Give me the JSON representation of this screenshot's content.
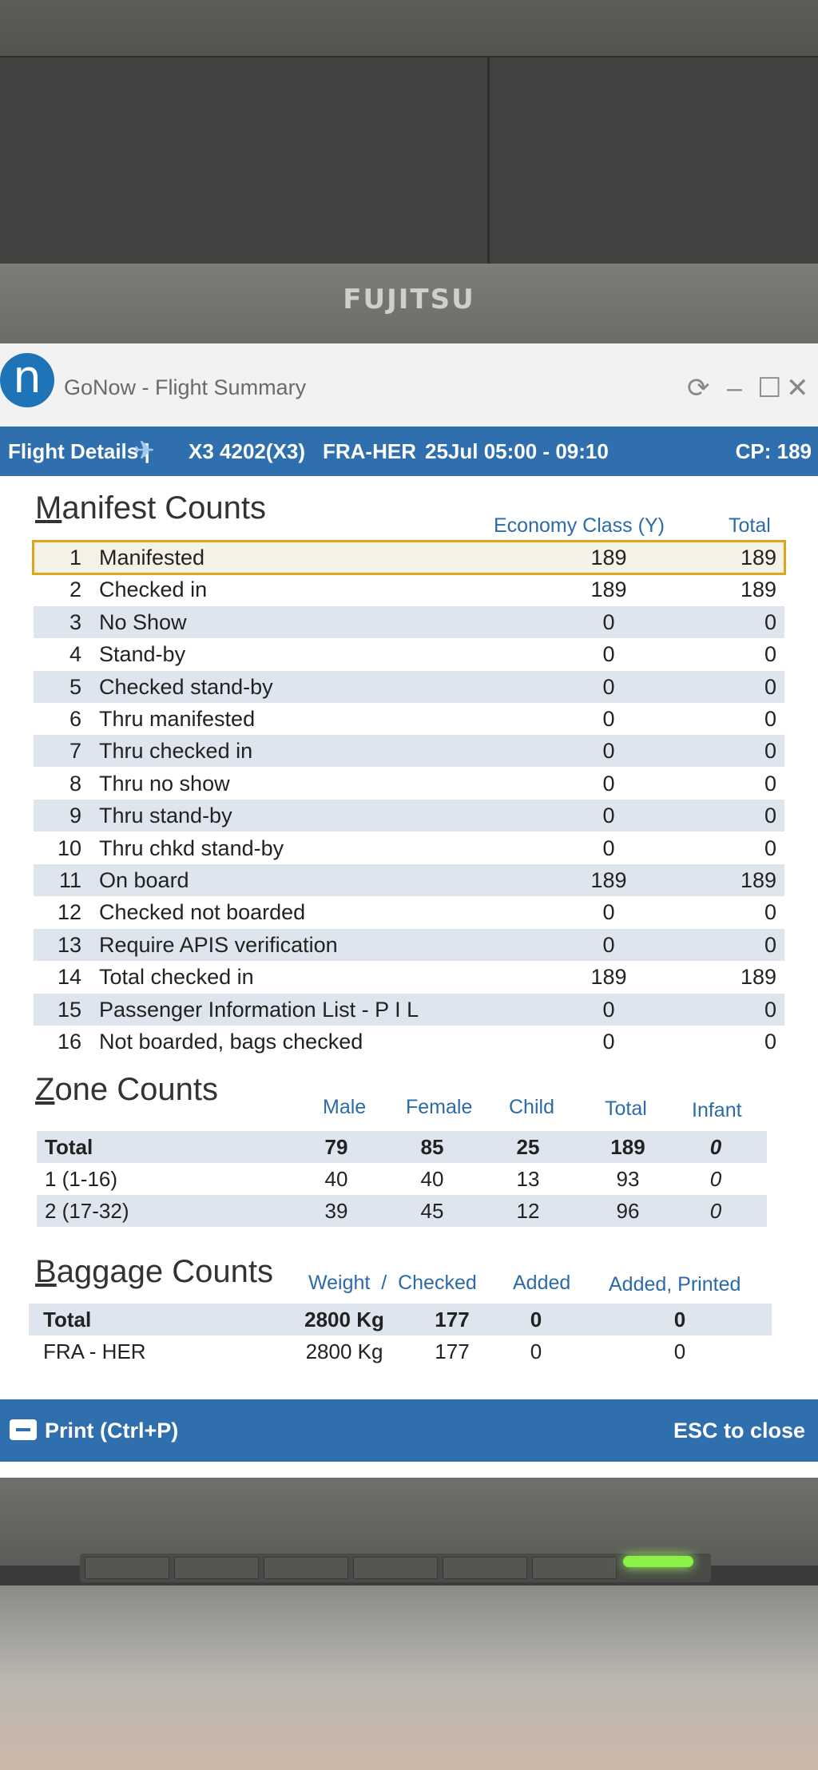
{
  "monitor": {
    "brand": "FUJITSU"
  },
  "window": {
    "logo": "n",
    "title": "GoNow - Flight Summary",
    "controls": {
      "refresh": "⟳",
      "minimize": "–",
      "maximize": "☐",
      "close": "✕"
    }
  },
  "flight_bar": {
    "label": "Flight Details |",
    "icon": "airplane-icon",
    "flight": "X3 4202(X3)",
    "route": "FRA-HER",
    "schedule": "25Jul 05:00 - 09:10",
    "cp": "CP: 189"
  },
  "manifest": {
    "title_first": "M",
    "title_rest": "anifest Counts",
    "col_economy": "Economy Class (Y)",
    "col_total": "Total",
    "selected_row": 1,
    "rows": [
      {
        "num": "1",
        "label": "Manifested",
        "economy": "189",
        "total": "189"
      },
      {
        "num": "2",
        "label": "Checked in",
        "economy": "189",
        "total": "189"
      },
      {
        "num": "3",
        "label": "No Show",
        "economy": "0",
        "total": "0"
      },
      {
        "num": "4",
        "label": "Stand-by",
        "economy": "0",
        "total": "0"
      },
      {
        "num": "5",
        "label": "Checked stand-by",
        "economy": "0",
        "total": "0"
      },
      {
        "num": "6",
        "label": "Thru manifested",
        "economy": "0",
        "total": "0"
      },
      {
        "num": "7",
        "label": "Thru checked in",
        "economy": "0",
        "total": "0"
      },
      {
        "num": "8",
        "label": "Thru no show",
        "economy": "0",
        "total": "0"
      },
      {
        "num": "9",
        "label": "Thru stand-by",
        "economy": "0",
        "total": "0"
      },
      {
        "num": "10",
        "label": "Thru chkd stand-by",
        "economy": "0",
        "total": "0"
      },
      {
        "num": "11",
        "label": "On board",
        "economy": "189",
        "total": "189"
      },
      {
        "num": "12",
        "label": "Checked not boarded",
        "economy": "0",
        "total": "0"
      },
      {
        "num": "13",
        "label": "Require APIS verification",
        "economy": "0",
        "total": "0"
      },
      {
        "num": "14",
        "label": "Total checked in",
        "economy": "189",
        "total": "189"
      },
      {
        "num": "15",
        "label": "Passenger Information List - P I L",
        "economy": "0",
        "total": "0"
      },
      {
        "num": "16",
        "label": "Not boarded, bags checked",
        "economy": "0",
        "total": "0"
      }
    ]
  },
  "zone": {
    "title_first": "Z",
    "title_rest": "one Counts",
    "cols": {
      "male": "Male",
      "female": "Female",
      "child": "Child",
      "total": "Total",
      "infant": "Infant"
    },
    "rows": [
      {
        "label": "Total",
        "male": "79",
        "female": "85",
        "child": "25",
        "total": "189",
        "infant": "0"
      },
      {
        "label": "1 (1-16)",
        "male": "40",
        "female": "40",
        "child": "13",
        "total": "93",
        "infant": "0"
      },
      {
        "label": "2 (17-32)",
        "male": "39",
        "female": "45",
        "child": "12",
        "total": "96",
        "infant": "0"
      }
    ]
  },
  "baggage": {
    "title_first": "B",
    "title_rest": "aggage Counts",
    "cols": {
      "weight_checked": "Weight  /  Checked",
      "added": "Added",
      "added_printed": "Added, Printed"
    },
    "rows": [
      {
        "label": "Total",
        "weight": "2800 Kg",
        "checked": "177",
        "added": "0",
        "added_printed": "0"
      },
      {
        "label": "FRA - HER",
        "weight": "2800 Kg",
        "checked": "177",
        "added": "0",
        "added_printed": "0"
      }
    ]
  },
  "footer": {
    "print_label": "Print (Ctrl+P)",
    "print_icon": "printer-icon",
    "esc_label": "ESC to close"
  },
  "colors": {
    "accent_blue": "#2f6fae",
    "header_blue": "#2c6aa8",
    "selection": "#e0a51a",
    "row_stripe": "#dfe5ee"
  }
}
